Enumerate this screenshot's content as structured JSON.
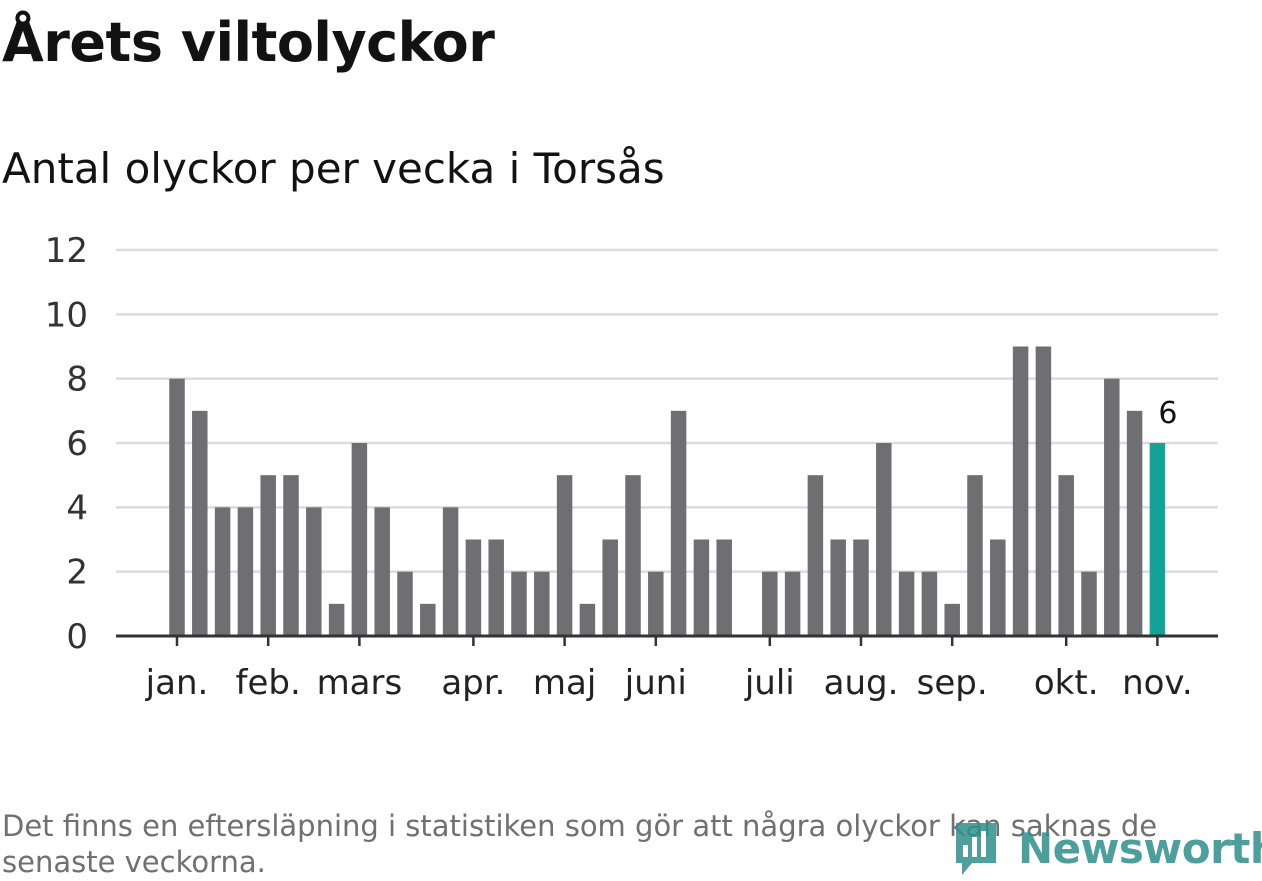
{
  "header": {
    "title": "Årets viltolyckor",
    "subtitle": "Antal olyckor per vecka i Torsås"
  },
  "chart_data": {
    "type": "bar",
    "title": "Årets viltolyckor",
    "subtitle": "Antal olyckor per vecka i Torsås",
    "xlabel": "",
    "ylabel": "",
    "ylim": [
      0,
      12
    ],
    "yticks": [
      0,
      2,
      4,
      6,
      8,
      10,
      12
    ],
    "grid": true,
    "x_tick_labels": [
      {
        "label": "jan.",
        "week": 1
      },
      {
        "label": "feb.",
        "week": 5
      },
      {
        "label": "mars",
        "week": 9
      },
      {
        "label": "apr.",
        "week": 14
      },
      {
        "label": "maj",
        "week": 18
      },
      {
        "label": "juni",
        "week": 22
      },
      {
        "label": "juli",
        "week": 27
      },
      {
        "label": "aug.",
        "week": 31
      },
      {
        "label": "sep.",
        "week": 35
      },
      {
        "label": "okt.",
        "week": 40
      },
      {
        "label": "nov.",
        "week": 44
      }
    ],
    "weeks": [
      1,
      2,
      3,
      4,
      5,
      6,
      7,
      8,
      9,
      10,
      11,
      12,
      13,
      14,
      15,
      16,
      17,
      18,
      19,
      20,
      21,
      22,
      23,
      24,
      25,
      26,
      27,
      28,
      29,
      30,
      31,
      32,
      33,
      34,
      35,
      36,
      37,
      38,
      39,
      40,
      41,
      42,
      43,
      44
    ],
    "values": [
      8,
      7,
      4,
      4,
      5,
      5,
      4,
      1,
      6,
      4,
      2,
      1,
      4,
      3,
      3,
      2,
      2,
      5,
      1,
      3,
      5,
      2,
      7,
      3,
      3,
      0,
      2,
      2,
      5,
      3,
      3,
      6,
      2,
      2,
      1,
      5,
      3,
      9,
      9,
      5,
      2,
      8,
      7,
      6
    ],
    "highlight_index": 43,
    "highlight_label": "6",
    "colors": {
      "bar": "#6f6e73",
      "highlight": "#13a39a",
      "grid": "#dcdcdc",
      "axis": "#333333"
    }
  },
  "footer": {
    "note": "Det finns en eftersläpning i statistiken som gör att några olyckor kan saknas de senaste veckorna.",
    "brand": "Newsworthy",
    "brand_color": "#2e8f8c"
  }
}
